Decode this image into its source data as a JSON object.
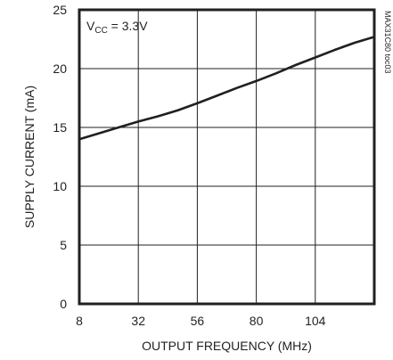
{
  "chart_data": {
    "type": "line",
    "title": "",
    "xlabel": "OUTPUT FREQUENCY (MHz)",
    "ylabel": "SUPPLY CURRENT (mA)",
    "xlim": [
      8,
      128
    ],
    "ylim": [
      0,
      25
    ],
    "x_ticks": [
      8,
      32,
      56,
      80,
      104
    ],
    "y_ticks": [
      0,
      5,
      10,
      15,
      20,
      25
    ],
    "grid": true,
    "annotation": {
      "main": "V",
      "subscript": "CC",
      "suffix": " = 3.3V"
    },
    "side_label": "MAX31C80 toc03",
    "series": [
      {
        "x": [
          8,
          16,
          24,
          32,
          40,
          48,
          56,
          64,
          72,
          80,
          88,
          96,
          104,
          112,
          120,
          128
        ],
        "y": [
          14.0,
          14.5,
          15.0,
          15.5,
          15.95,
          16.45,
          17.05,
          17.7,
          18.35,
          18.95,
          19.6,
          20.3,
          20.95,
          21.6,
          22.2,
          22.7
        ]
      }
    ]
  }
}
